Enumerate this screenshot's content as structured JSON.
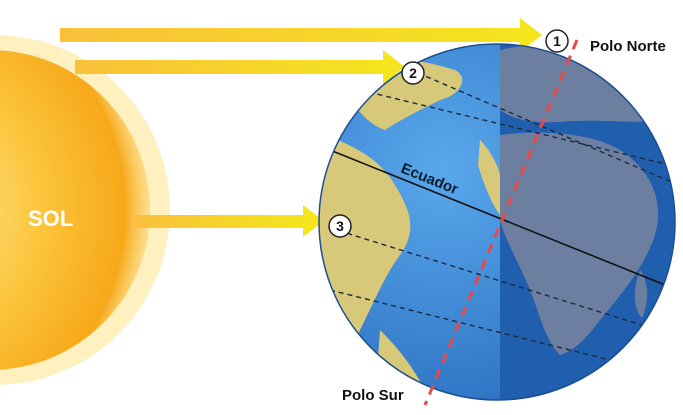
{
  "sun": {
    "label": "SOL"
  },
  "labels": {
    "north_pole": "Polo Norte",
    "south_pole": "Polo Sur",
    "equator": "Ecuador"
  },
  "markers": [
    "1",
    "2",
    "3"
  ],
  "colors": {
    "sun": "#f9b21e",
    "sun_glow": "#fde68a",
    "arrow": "#f6d21a",
    "ocean_day": "#3d8fd8",
    "ocean_night": "#1f5fae",
    "land_day": "#d8c97a",
    "land_night": "#6c7fa0",
    "axis": "#e84a4a"
  }
}
